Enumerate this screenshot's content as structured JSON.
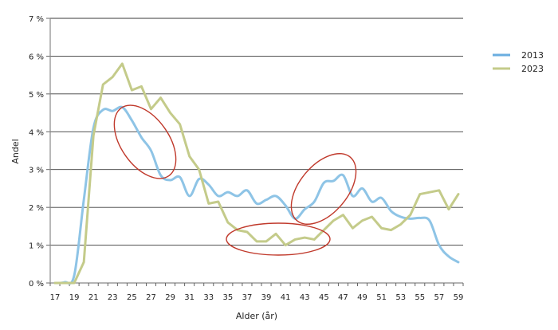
{
  "chart_data": {
    "type": "line",
    "title": "",
    "xlabel": "Alder (år)",
    "ylabel": "Andel",
    "ylim": [
      0,
      7
    ],
    "y_ticks": [
      "0 %",
      "1 %",
      "2 %",
      "3 %",
      "4 %",
      "5 %",
      "6 %",
      "7 %"
    ],
    "x_tick_labels": [
      "17",
      "19",
      "21",
      "23",
      "25",
      "27",
      "29",
      "31",
      "33",
      "35",
      "37",
      "39",
      "41",
      "43",
      "45",
      "47",
      "49",
      "51",
      "53",
      "55",
      "57",
      "59"
    ],
    "grid": "horizontal",
    "legend_position": "right",
    "x": [
      17,
      18,
      19,
      20,
      21,
      22,
      23,
      24,
      25,
      26,
      27,
      28,
      29,
      30,
      31,
      32,
      33,
      34,
      35,
      36,
      37,
      38,
      39,
      40,
      41,
      42,
      43,
      44,
      45,
      46,
      47,
      48,
      49,
      50,
      51,
      52,
      53,
      54,
      55,
      56,
      57,
      58,
      59
    ],
    "series": [
      {
        "name": "2013",
        "color": "#8ec4e6",
        "values": [
          0.0,
          0.02,
          0.2,
          2.2,
          4.1,
          4.58,
          4.55,
          4.65,
          4.3,
          3.85,
          3.5,
          2.85,
          2.72,
          2.8,
          2.3,
          2.75,
          2.6,
          2.3,
          2.4,
          2.3,
          2.45,
          2.1,
          2.2,
          2.3,
          2.05,
          1.7,
          1.95,
          2.15,
          2.65,
          2.7,
          2.85,
          2.3,
          2.5,
          2.15,
          2.25,
          1.9,
          1.75,
          1.7,
          1.72,
          1.65,
          1.0,
          0.7,
          0.55
        ]
      },
      {
        "name": "2023",
        "color": "#c4cb8a",
        "values": [
          0.0,
          0.0,
          0.0,
          0.55,
          3.9,
          5.25,
          5.45,
          5.8,
          5.1,
          5.2,
          4.6,
          4.9,
          4.5,
          4.2,
          3.35,
          3.0,
          2.1,
          2.15,
          1.6,
          1.4,
          1.35,
          1.1,
          1.1,
          1.3,
          1.0,
          1.15,
          1.2,
          1.15,
          1.4,
          1.65,
          1.8,
          1.45,
          1.65,
          1.75,
          1.45,
          1.4,
          1.55,
          1.8,
          2.35,
          2.4,
          2.45,
          1.95,
          2.35
        ]
      }
    ],
    "annotations": [
      {
        "type": "ellipse",
        "color": "#c0392b",
        "description": "highlight 2013 decline age ~24-28"
      },
      {
        "type": "ellipse",
        "color": "#c0392b",
        "description": "highlight 2023 low around age ~35-45"
      },
      {
        "type": "ellipse",
        "color": "#c0392b",
        "description": "highlight 2013 bump age ~42-47"
      }
    ]
  },
  "legend": {
    "items": [
      {
        "label": "2013",
        "color": "#8ec4e6"
      },
      {
        "label": "2023",
        "color": "#c4cb8a"
      }
    ]
  },
  "axes": {
    "x_title": "Alder (år)",
    "y_title": "Andel"
  }
}
